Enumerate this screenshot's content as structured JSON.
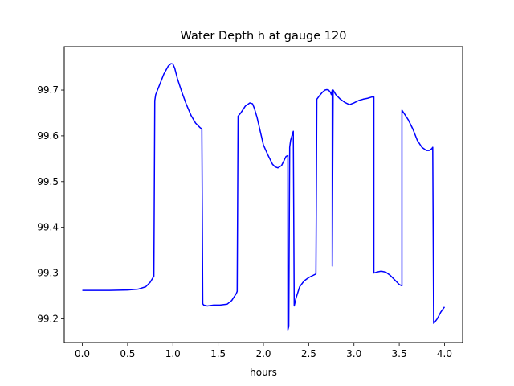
{
  "chart_data": {
    "type": "line",
    "title": "Water Depth h at gauge 120",
    "xlabel": "hours",
    "ylabel": "",
    "xlim": [
      -0.2,
      4.2
    ],
    "ylim": [
      99.148,
      99.795
    ],
    "xticks": [
      0.0,
      0.5,
      1.0,
      1.5,
      2.0,
      2.5,
      3.0,
      3.5,
      4.0
    ],
    "xtick_labels": [
      "0.0",
      "0.5",
      "1.0",
      "1.5",
      "2.0",
      "2.5",
      "3.0",
      "3.5",
      "4.0"
    ],
    "yticks": [
      99.2,
      99.3,
      99.4,
      99.5,
      99.6,
      99.7
    ],
    "ytick_labels": [
      "99.2",
      "99.3",
      "99.4",
      "99.5",
      "99.6",
      "99.7"
    ],
    "grid": false,
    "line_color": "#0000ff",
    "series": [
      {
        "x": [
          0.0,
          0.3,
          0.5,
          0.62,
          0.7,
          0.75,
          0.79,
          0.8,
          0.81,
          0.85,
          0.9,
          0.95,
          0.98,
          1.0,
          1.02,
          1.05,
          1.1,
          1.15,
          1.2,
          1.25,
          1.3,
          1.32,
          1.33,
          1.34,
          1.38,
          1.45,
          1.52,
          1.6,
          1.65,
          1.7,
          1.71,
          1.72,
          1.75,
          1.8,
          1.85,
          1.88,
          1.9,
          1.93,
          2.0,
          2.05,
          2.1,
          2.13,
          2.16,
          2.2,
          2.25,
          2.27,
          2.27,
          2.28,
          2.29,
          2.29,
          2.3,
          2.33,
          2.34,
          2.34,
          2.36,
          2.4,
          2.45,
          2.5,
          2.55,
          2.58,
          2.59,
          2.59,
          2.62,
          2.65,
          2.68,
          2.7,
          2.72,
          2.74,
          2.75,
          2.76,
          2.76,
          2.77,
          2.77,
          2.8,
          2.85,
          2.9,
          2.95,
          3.0,
          3.05,
          3.1,
          3.15,
          3.2,
          3.22,
          3.22,
          3.25,
          3.3,
          3.35,
          3.4,
          3.45,
          3.5,
          3.53,
          3.53,
          3.55,
          3.6,
          3.65,
          3.7,
          3.75,
          3.8,
          3.83,
          3.86,
          3.87,
          3.88,
          3.89,
          3.92,
          3.96,
          4.0
        ],
        "y": [
          99.262,
          99.262,
          99.263,
          99.265,
          99.27,
          99.28,
          99.293,
          99.677,
          99.69,
          99.71,
          99.735,
          99.753,
          99.758,
          99.757,
          99.748,
          99.725,
          99.695,
          99.668,
          99.645,
          99.628,
          99.618,
          99.615,
          99.233,
          99.23,
          99.228,
          99.23,
          99.23,
          99.232,
          99.24,
          99.255,
          99.26,
          99.643,
          99.65,
          99.665,
          99.672,
          99.67,
          99.66,
          99.64,
          99.58,
          99.558,
          99.538,
          99.532,
          99.53,
          99.535,
          99.555,
          99.557,
          99.176,
          99.183,
          99.575,
          99.575,
          99.59,
          99.61,
          99.228,
          99.228,
          99.245,
          99.27,
          99.283,
          99.29,
          99.295,
          99.298,
          99.68,
          99.68,
          99.688,
          99.695,
          99.7,
          99.701,
          99.7,
          99.695,
          99.69,
          99.7,
          99.315,
          99.7,
          99.7,
          99.69,
          99.68,
          99.673,
          99.668,
          99.672,
          99.677,
          99.68,
          99.682,
          99.685,
          99.685,
          99.3,
          99.302,
          99.304,
          99.302,
          99.295,
          99.285,
          99.275,
          99.272,
          99.656,
          99.65,
          99.635,
          99.615,
          99.59,
          99.575,
          99.568,
          99.568,
          99.572,
          99.575,
          99.19,
          99.192,
          99.2,
          99.215,
          99.226
        ]
      }
    ]
  }
}
